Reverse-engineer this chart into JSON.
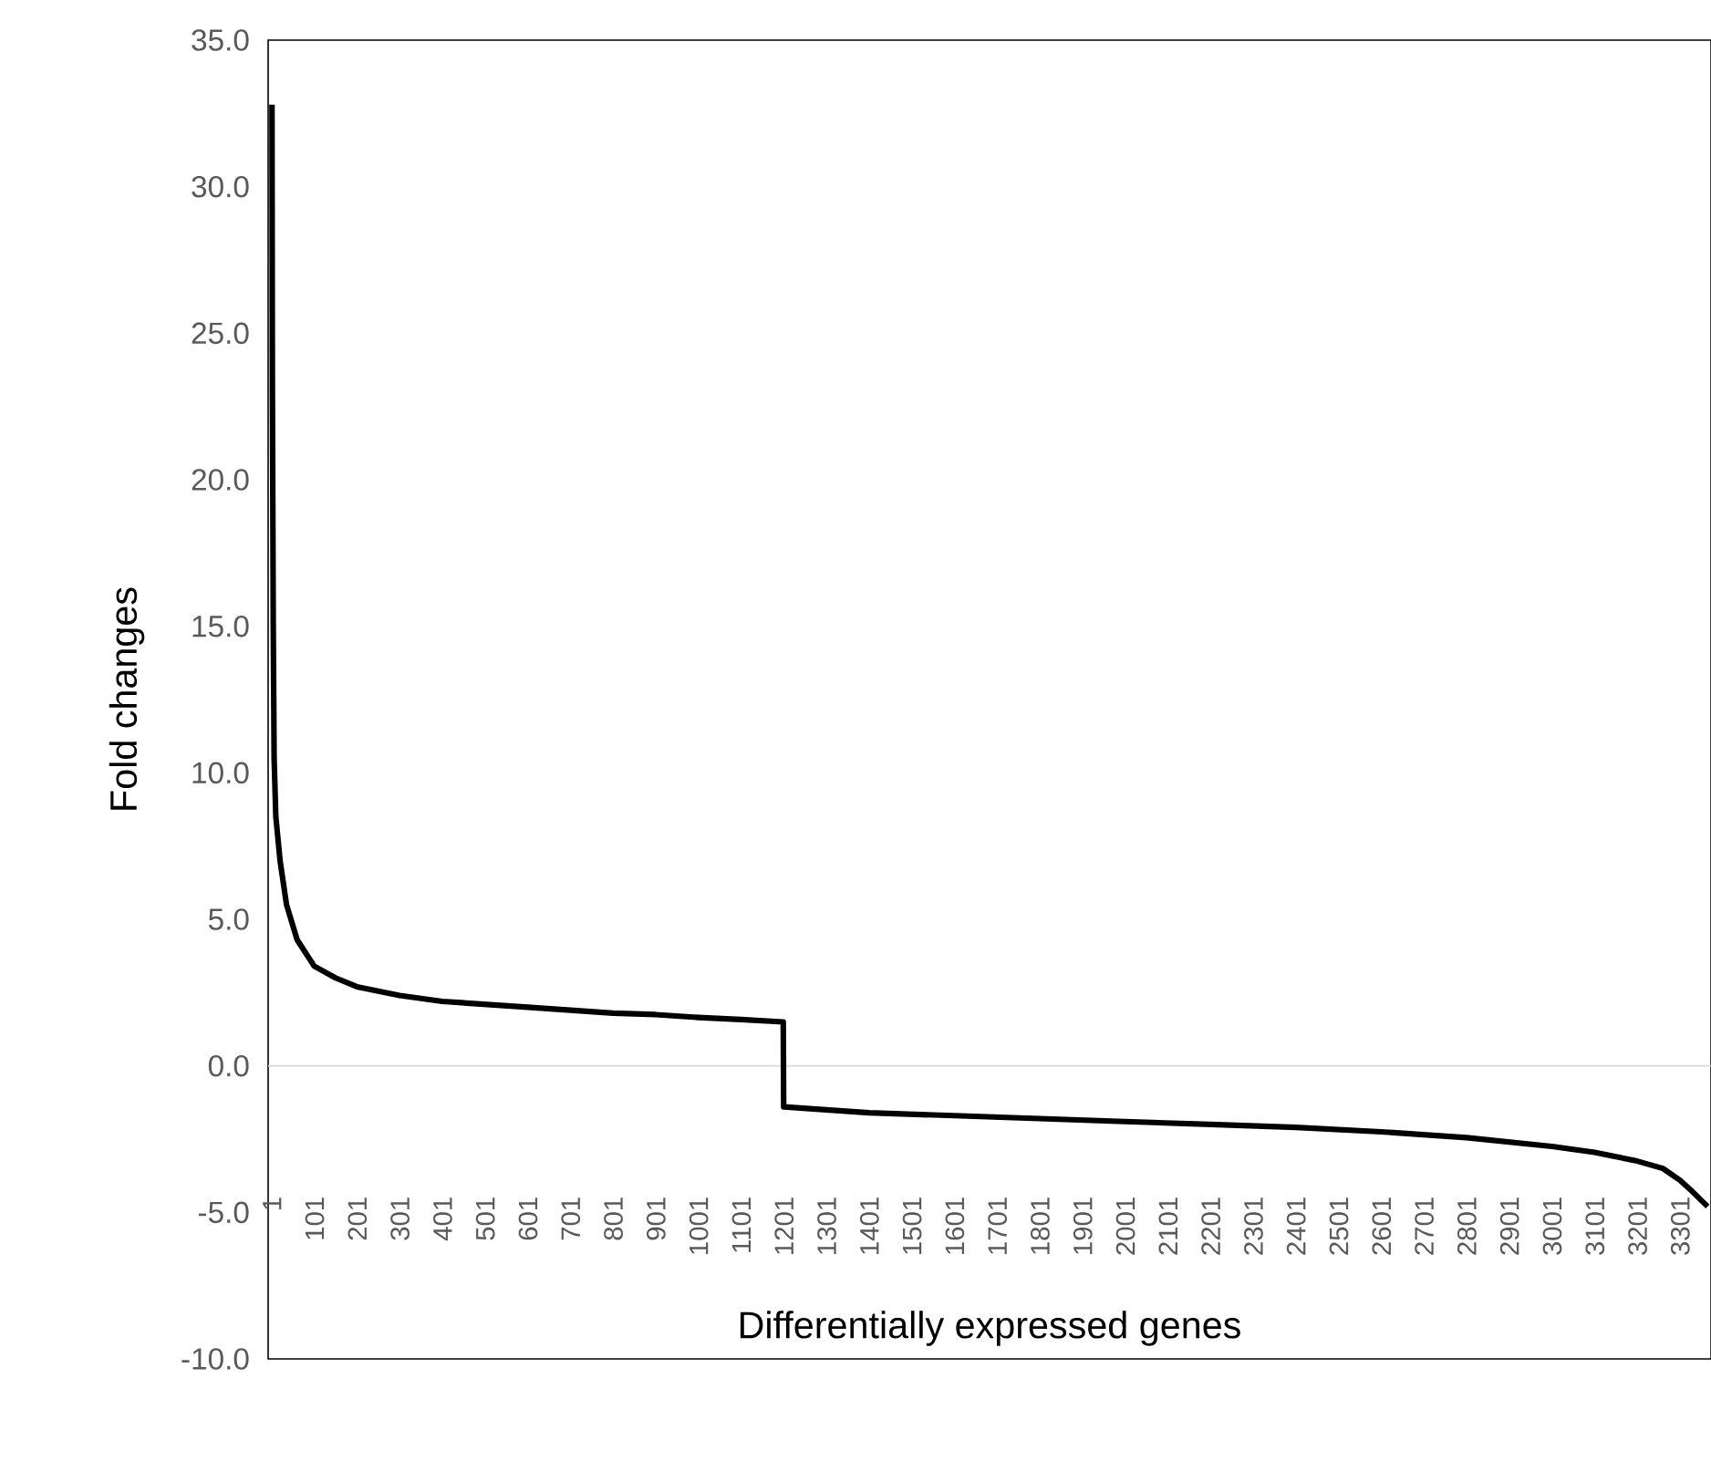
{
  "chart_data": {
    "type": "line",
    "xlabel": "Differentially expressed genes",
    "ylabel": "Fold changes",
    "xlim": [
      -8,
      3373
    ],
    "ylim": [
      -10,
      35
    ],
    "xticks": [
      1,
      101,
      201,
      301,
      401,
      501,
      601,
      701,
      801,
      901,
      1001,
      1101,
      1201,
      1301,
      1401,
      1501,
      1601,
      1701,
      1801,
      1901,
      2001,
      2101,
      2201,
      2301,
      2401,
      2501,
      2601,
      2701,
      2801,
      2901,
      3001,
      3101,
      3201,
      3301
    ],
    "yticks": [
      {
        "value": -10,
        "label": "-10.0"
      },
      {
        "value": -5,
        "label": "-5.0"
      },
      {
        "value": 0,
        "label": "0.0"
      },
      {
        "value": 5,
        "label": "5.0"
      },
      {
        "value": 10,
        "label": "10.0"
      },
      {
        "value": 15,
        "label": "15.0"
      },
      {
        "value": 20,
        "label": "20.0"
      },
      {
        "value": 25,
        "label": "25.0"
      },
      {
        "value": 30,
        "label": "30.0"
      },
      {
        "value": 35,
        "label": "35.0"
      }
    ],
    "ref_lines": [
      {
        "axis": "y",
        "value": 0,
        "color": "#d9d9d9"
      }
    ],
    "x": [
      1,
      2,
      4,
      6,
      10,
      20,
      35,
      60,
      100,
      150,
      200,
      300,
      400,
      500,
      600,
      700,
      800,
      900,
      1000,
      1100,
      1199,
      1200,
      1300,
      1400,
      1600,
      1800,
      2000,
      2200,
      2400,
      2600,
      2800,
      2900,
      3000,
      3100,
      3200,
      3260,
      3300,
      3330,
      3365
    ],
    "series": [
      {
        "color": "#000000",
        "values": [
          32.8,
          23,
          15,
          10.5,
          8.5,
          7.0,
          5.5,
          4.3,
          3.4,
          3.0,
          2.7,
          2.4,
          2.2,
          2.1,
          2.0,
          1.9,
          1.8,
          1.75,
          1.65,
          1.58,
          1.5,
          -1.4,
          -1.5,
          -1.6,
          -1.7,
          -1.8,
          -1.9,
          -2.0,
          -2.1,
          -2.25,
          -2.45,
          -2.6,
          -2.75,
          -2.95,
          -3.25,
          -3.5,
          -3.9,
          -4.3,
          -4.8
        ]
      }
    ]
  }
}
